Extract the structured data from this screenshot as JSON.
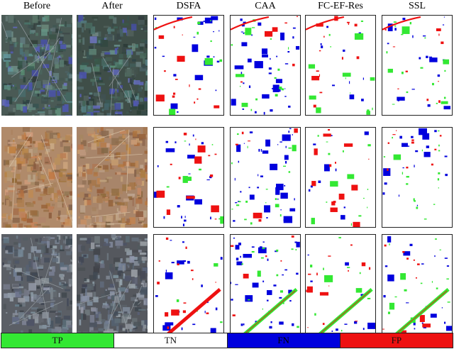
{
  "columns": [
    "Before",
    "After",
    "DSFA",
    "CAA",
    "FC-EF-Res",
    "SSL"
  ],
  "legend": [
    {
      "label": "TP",
      "color": "#33e833"
    },
    {
      "label": "TN",
      "color": "#ffffff"
    },
    {
      "label": "FN",
      "color": "#0000dd"
    },
    {
      "label": "FP",
      "color": "#ee1111"
    }
  ],
  "rows": [
    {
      "scene": "urban-vegetation",
      "before_tone": "#4a5a55",
      "after_tone": "#3f4e48"
    },
    {
      "scene": "arid-farmland",
      "before_tone": "#b08a6a",
      "after_tone": "#a8856a"
    },
    {
      "scene": "dense-city",
      "before_tone": "#5b5f66",
      "after_tone": "#55585e"
    }
  ]
}
